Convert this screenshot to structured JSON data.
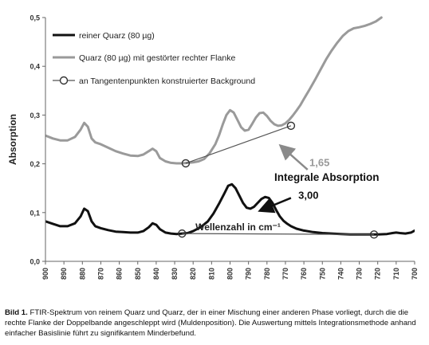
{
  "caption": {
    "label": "Bild 1.",
    "text": "FTIR-Spektrum von reinem Quarz und Quarz, der in einer Mischung einer anderen Phase vorliegt, durch die die rechte Flanke der Doppelbande angeschleppt wird (Muldenposition). Die Auswertung mittels Integrationsmethode anhand einfacher Basislinie führt zu signifikantem Minderbefund."
  },
  "chart_data": {
    "type": "line",
    "title": "",
    "xlabel": "Wellenzahl in cm⁻¹",
    "ylabel": "Absorption",
    "xlim": [
      900,
      700
    ],
    "x_reversed": true,
    "ylim": [
      0,
      0.5
    ],
    "x_ticks": [
      900,
      890,
      880,
      870,
      860,
      850,
      840,
      830,
      820,
      810,
      800,
      790,
      780,
      770,
      760,
      750,
      740,
      730,
      720,
      710,
      700
    ],
    "y_ticks": [
      0.0,
      0.1,
      0.2,
      0.3,
      0.4,
      0.5
    ],
    "y_tick_labels": [
      "0,0",
      "0,1",
      "0,2",
      "0,3",
      "0,4",
      "0,5"
    ],
    "grid": false,
    "legend_position": "top-left",
    "series": [
      {
        "name": "reiner Quarz (80 µg)",
        "color": "#111111",
        "x": [
          900,
          896,
          892,
          888,
          884,
          881,
          879,
          877,
          875,
          873,
          870,
          866,
          862,
          858,
          854,
          850,
          847,
          844,
          842,
          840,
          838,
          835,
          832,
          829,
          826,
          823,
          820,
          816,
          812,
          809,
          806,
          803,
          801,
          799,
          797,
          795,
          793,
          791,
          789,
          787,
          785,
          783,
          781,
          779,
          777,
          775,
          773,
          771,
          769,
          767,
          764,
          760,
          755,
          750,
          745,
          740,
          735,
          730,
          725,
          720,
          715,
          712,
          710,
          708,
          705,
          702,
          700
        ],
        "values": [
          0.082,
          0.077,
          0.072,
          0.072,
          0.078,
          0.092,
          0.108,
          0.103,
          0.082,
          0.072,
          0.068,
          0.064,
          0.061,
          0.06,
          0.059,
          0.059,
          0.062,
          0.07,
          0.078,
          0.075,
          0.066,
          0.059,
          0.057,
          0.056,
          0.057,
          0.058,
          0.062,
          0.07,
          0.082,
          0.098,
          0.118,
          0.14,
          0.155,
          0.158,
          0.15,
          0.135,
          0.12,
          0.11,
          0.108,
          0.112,
          0.12,
          0.128,
          0.132,
          0.13,
          0.12,
          0.105,
          0.092,
          0.083,
          0.077,
          0.072,
          0.067,
          0.063,
          0.06,
          0.058,
          0.057,
          0.056,
          0.055,
          0.055,
          0.055,
          0.055,
          0.056,
          0.058,
          0.059,
          0.058,
          0.057,
          0.059,
          0.063
        ]
      },
      {
        "name": "Quarz (80 µg) mit gestörter rechter Flanke",
        "color": "#9a9a9a",
        "x": [
          900,
          896,
          892,
          888,
          884,
          881,
          879,
          877,
          875,
          873,
          870,
          866,
          862,
          858,
          854,
          850,
          847,
          844,
          842,
          840,
          838,
          835,
          832,
          829,
          826,
          823,
          820,
          817,
          814,
          811,
          808,
          806,
          804,
          802,
          800,
          798,
          796,
          794,
          792,
          790,
          788,
          786,
          784,
          782,
          780,
          778,
          776,
          774,
          772,
          770,
          768,
          766,
          764,
          762,
          760,
          757,
          754,
          751,
          748,
          745,
          742,
          739,
          736,
          733,
          730,
          727,
          724,
          721,
          718
        ],
        "values": [
          0.258,
          0.252,
          0.248,
          0.248,
          0.255,
          0.27,
          0.284,
          0.276,
          0.252,
          0.244,
          0.24,
          0.233,
          0.226,
          0.221,
          0.217,
          0.216,
          0.219,
          0.226,
          0.231,
          0.226,
          0.212,
          0.205,
          0.202,
          0.201,
          0.201,
          0.202,
          0.203,
          0.205,
          0.21,
          0.222,
          0.24,
          0.258,
          0.28,
          0.3,
          0.31,
          0.305,
          0.29,
          0.275,
          0.268,
          0.27,
          0.282,
          0.295,
          0.304,
          0.305,
          0.298,
          0.288,
          0.281,
          0.278,
          0.279,
          0.283,
          0.29,
          0.299,
          0.309,
          0.32,
          0.333,
          0.352,
          0.372,
          0.393,
          0.414,
          0.432,
          0.448,
          0.462,
          0.472,
          0.478,
          0.48,
          0.483,
          0.487,
          0.492,
          0.5
        ]
      },
      {
        "name": "an Tangentenpunkten konstruierter Background",
        "color": "#555555",
        "segments": [
          {
            "x": [
              824.0,
              767.0
            ],
            "values": [
              0.201,
              0.278
            ]
          },
          {
            "x": [
              826.0,
              722.0
            ],
            "values": [
              0.057,
              0.055
            ]
          }
        ]
      }
    ],
    "annotations": [
      {
        "text": "1,65",
        "x": 757,
        "y": 0.195,
        "color": "#999999"
      },
      {
        "text": "Integrale Absorption",
        "x": 776,
        "y": 0.165,
        "color": "#111111"
      },
      {
        "text": "3,00",
        "x": 763,
        "y": 0.128,
        "color": "#111111"
      }
    ]
  }
}
